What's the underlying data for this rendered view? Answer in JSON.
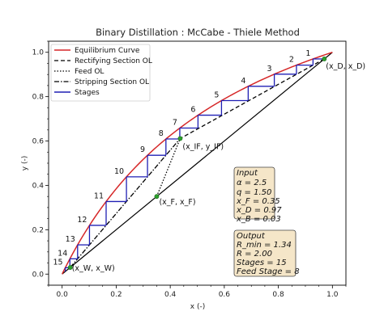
{
  "chart_data": {
    "type": "line",
    "title": "Binary Distillation : McCabe - Thiele Method",
    "xlabel": "x (-)",
    "ylabel": "y (-)",
    "xlim": [
      -0.05,
      1.05
    ],
    "ylim": [
      -0.05,
      1.05
    ],
    "x_ticks": [
      "0.0",
      "0.2",
      "0.4",
      "0.6",
      "0.8",
      "1.0"
    ],
    "y_ticks": [
      "0.0",
      "0.2",
      "0.4",
      "0.6",
      "0.8",
      "1.0"
    ],
    "grid": "minor ticks, no gridlines",
    "legend_position": "top-left",
    "legend": [
      {
        "label": "Equilibrium Curve",
        "color": "#d62728",
        "style": "solid"
      },
      {
        "label": "Rectifying Section OL",
        "color": "#000000",
        "style": "dashed"
      },
      {
        "label": "Feed OL",
        "color": "#000000",
        "style": "dotted"
      },
      {
        "label": "Stripping Section OL",
        "color": "#000000",
        "style": "dashdot"
      },
      {
        "label": "Stages",
        "color": "#1f1fb4",
        "style": "solid"
      }
    ],
    "alpha": 2.5,
    "q": 1.5,
    "xF": 0.35,
    "xD": 0.97,
    "xW": 0.03,
    "R": 2.0,
    "rmin": 1.34,
    "stage_count": 15,
    "feed_stage": 8,
    "intersection": [
      0.4368,
      0.6112
    ],
    "stage_labels": [
      "1",
      "2",
      "3",
      "4",
      "5",
      "6",
      "7",
      "8",
      "9",
      "10",
      "11",
      "12",
      "13",
      "14",
      "15"
    ],
    "point_labels": {
      "distillate": "(x_D, x_D)",
      "feed": "(x_F, x_F)",
      "intersection": "(x_IF, y_IF)",
      "bottoms": "(x_W, x_W)"
    },
    "input_box": {
      "title": "Input",
      "lines": [
        "α = 2.5",
        "q = 1.50",
        "x_F = 0.35",
        "x_D = 0.97",
        "x_B = 0.03"
      ]
    },
    "output_box": {
      "title": "Output",
      "lines": [
        "R_min = 1.34",
        "R = 2.00",
        "Stages = 15",
        "Feed Stage = 8"
      ]
    }
  }
}
